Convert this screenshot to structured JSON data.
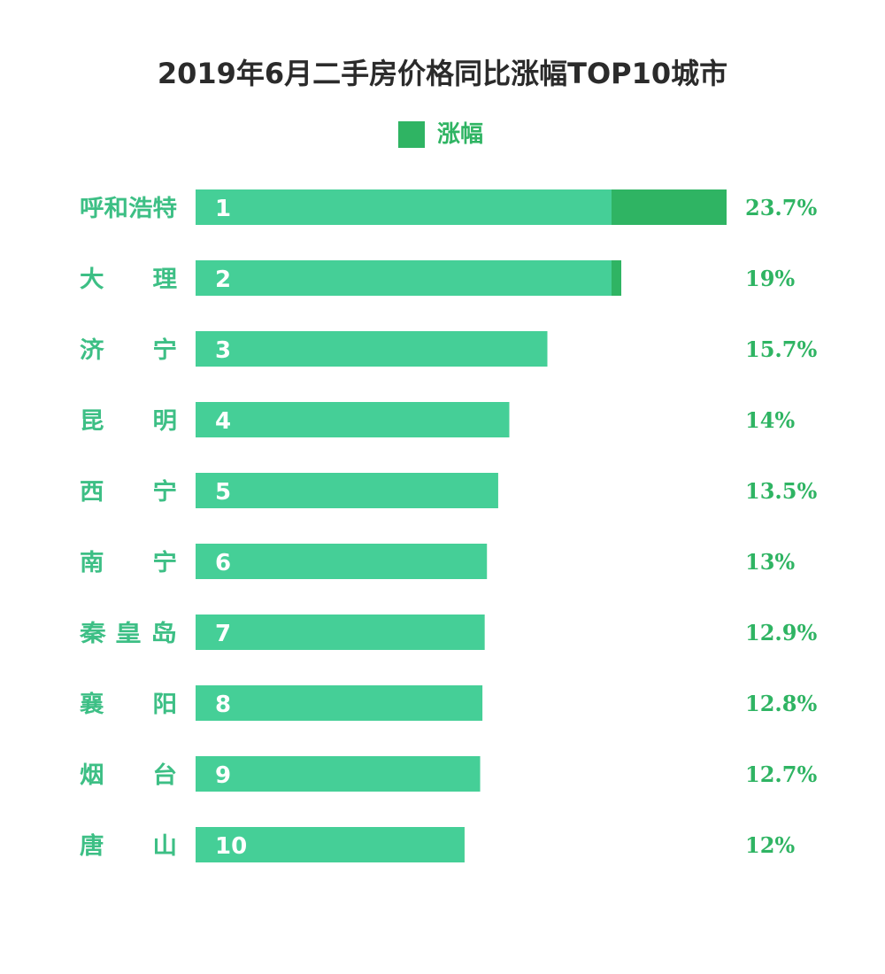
{
  "chart_data": {
    "type": "bar",
    "title": "2019年6月二手房价格同比涨幅TOP10城市",
    "legend": {
      "label": "涨幅",
      "position": "top-center"
    },
    "categories": [
      "呼和浩特",
      "大　　理",
      "济　　宁",
      "昆　　明",
      "西　　宁",
      "南　　宁",
      "秦 皇 岛",
      "襄　　阳",
      "烟　　台",
      "唐　　山"
    ],
    "ranks": [
      "1",
      "2",
      "3",
      "4",
      "5",
      "6",
      "7",
      "8",
      "9",
      "10"
    ],
    "series": [
      {
        "values": [
          23.7,
          19,
          15.7,
          14,
          13.5,
          13,
          12.9,
          12.8,
          12.7,
          12
        ]
      }
    ],
    "value_labels": [
      "23.7%",
      "19%",
      "15.7%",
      "14%",
      "13.5%",
      "13%",
      "12.9%",
      "12.8%",
      "12.7%",
      "12%"
    ],
    "value_unit": "%",
    "orientation": "horizontal",
    "grid": false,
    "xlabel": "",
    "ylabel": ""
  },
  "colors": {
    "bar_base": "#45cf97",
    "bar_accent": "#2fb463",
    "category_text": "#3dbf85",
    "value_text": "#2fb463",
    "title_text": "#2b2b2b"
  }
}
